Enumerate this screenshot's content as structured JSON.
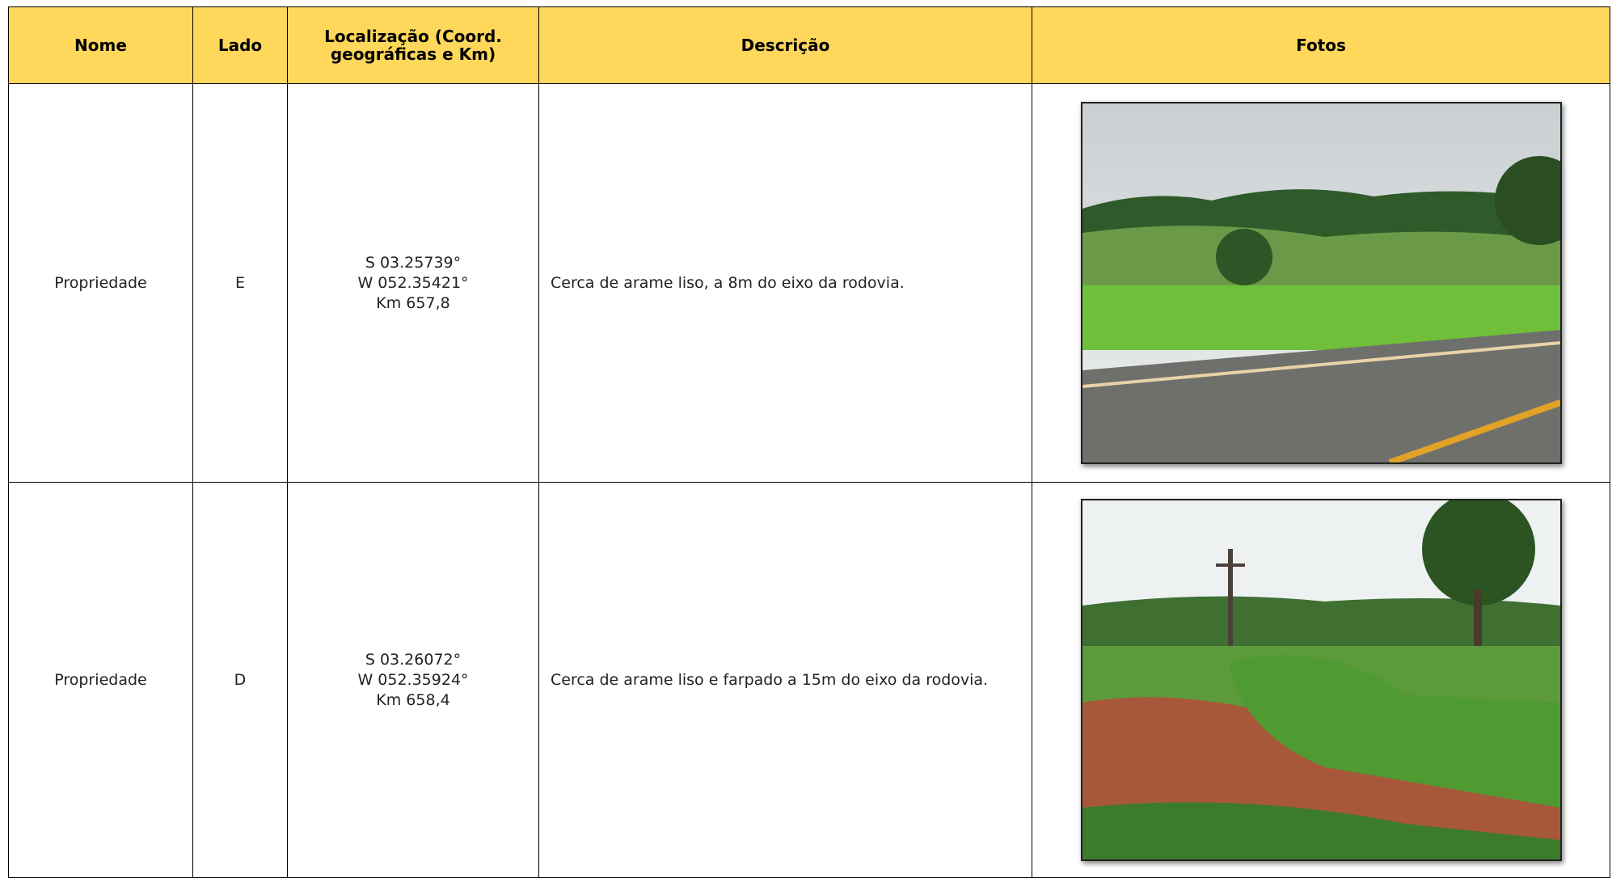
{
  "table": {
    "headers": [
      "Nome",
      "Lado",
      "Localização (Coord. geográficas e Km)",
      "Descrição",
      "Fotos"
    ],
    "rows": [
      {
        "nome": "Propriedade",
        "lado": "E",
        "localizacao": [
          "S 03.25739°",
          "W 052.35421°",
          "Km 657,8"
        ],
        "descricao": "Cerca de arame liso, a 8m do eixo da rodovia."
      },
      {
        "nome": "Propriedade",
        "lado": "D",
        "localizacao": [
          "S 03.26072°",
          "W 052.35924°",
          "Km 658,4"
        ],
        "descricao": "Cerca de arame liso e farpado a 15m do eixo da rodovia."
      }
    ]
  }
}
